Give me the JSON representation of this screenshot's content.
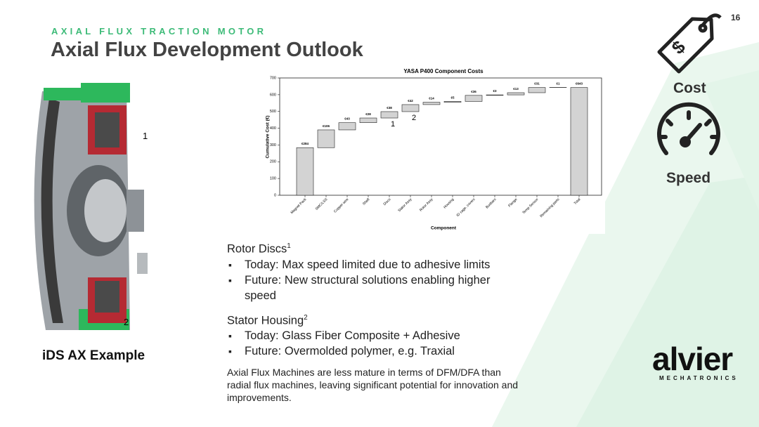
{
  "slide": {
    "page_number": "16",
    "kicker": "AXIAL FLUX TRACTION MOTOR",
    "title": "Axial Flux Development Outlook",
    "image_callouts": [
      "1",
      "2"
    ],
    "image_caption": "iDS AX Example",
    "icons": [
      "Cost",
      "Speed"
    ],
    "sections": [
      {
        "heading": "Rotor Discs",
        "ref": "1",
        "bullets": [
          "Today: Max speed limited due to adhesive limits",
          "Future: New structural solutions enabling higher speed"
        ]
      },
      {
        "heading": "Stator Housing",
        "ref": "2",
        "bullets": [
          "Today: Glass Fiber Composite + Adhesive",
          "Future: Overmolded polymer, e.g. Traxial"
        ]
      }
    ],
    "note": "Axial Flux Machines are less mature in terms of DFM/DFA than radial flux machines, leaving significant potential for innovation and improvements.",
    "logo": "alvier",
    "logo_sub": "MECHATRONICS"
  },
  "chart_data": {
    "type": "waterfall",
    "title": "YASA P400 Component Costs",
    "x_label": "Component",
    "y_label": "Cumulative Cost (€)",
    "categories": [
      "Magnet Pack",
      "SMC/LSS",
      "Copper wire",
      "Shaft",
      "Discs",
      "Stator Assy",
      "Rotor Assy",
      "Housing",
      "ID cage, covers",
      "Busbars",
      "Flange",
      "Temp Sensor",
      "Remaining parts",
      "Total"
    ],
    "values": [
      284,
      106,
      43,
      28,
      38,
      42,
      14,
      5,
      36,
      3,
      13,
      31,
      1,
      643
    ],
    "value_labels": [
      "€284",
      "€106",
      "€43",
      "€28",
      "€38",
      "€42",
      "€14",
      "€5",
      "€36",
      "€3",
      "€13",
      "€31",
      "€1",
      "€643"
    ],
    "last_is_total": true,
    "color": "#d3d3d3",
    "ylim": [
      0,
      700
    ],
    "yticks": [
      0,
      100,
      200,
      300,
      400,
      500,
      600,
      700
    ],
    "annotations": [
      {
        "text": "1",
        "category": 4
      },
      {
        "text": "2",
        "category": 5
      }
    ]
  }
}
